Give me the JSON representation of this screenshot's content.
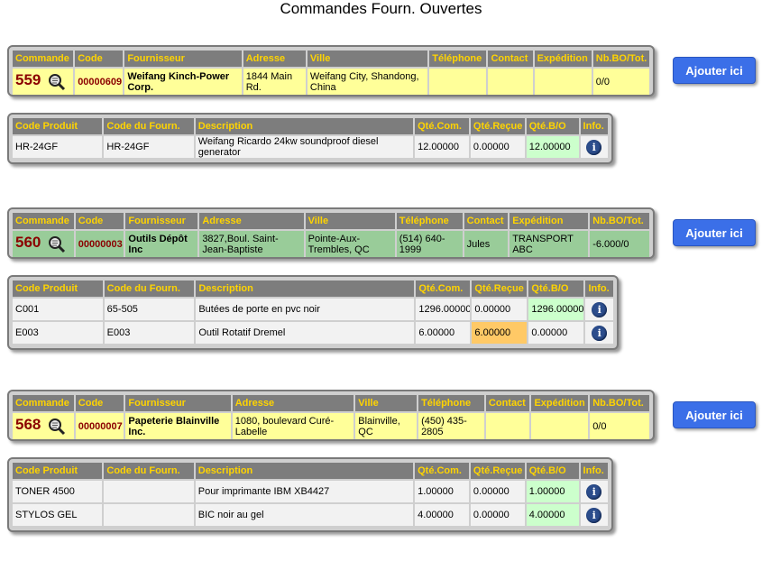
{
  "page_title": "Commandes Fourn. Ouvertes",
  "order_headers": [
    "Commande",
    "Code",
    "Fournisseur",
    "Adresse",
    "Ville",
    "Téléphone",
    "Contact",
    "Expédition",
    "Nb.BO/Tot."
  ],
  "item_headers": [
    "Code Produit",
    "Code du Fourn.",
    "Description",
    "Qté.Com.",
    "Qté.Reçue",
    "Qté.B/O",
    "Info."
  ],
  "add_button_label": "Ajouter ici",
  "info_icon_glyph": "i",
  "colors": {
    "header_bg": "#7d7d7d",
    "header_text": "#ffd400",
    "order_yellow": "#ffff99",
    "order_green": "#99cc99",
    "bo_green": "#ccffcc",
    "received_orange": "#ffc966",
    "button_blue": "#3b6fe8"
  },
  "orders": [
    {
      "number": "559",
      "code": "00000609",
      "supplier": "Weifang Kinch-Power Corp.",
      "address": "1844 Main Rd.",
      "city": "Weifang City, Shandong, China",
      "phone": "",
      "contact": "",
      "shipping": "",
      "bo_total": "0/0",
      "row_color": "yellow",
      "items": [
        {
          "product_code": "HR-24GF",
          "supplier_code": "HR-24GF",
          "description": "Weifang Ricardo 24kw soundproof diesel generator",
          "qty_ordered": "12.00000",
          "qty_received": "0.00000",
          "qty_bo": "12.00000"
        }
      ]
    },
    {
      "number": "560",
      "code": "00000003",
      "supplier": "Outils Dépôt Inc",
      "address": "3827,Boul. Saint-Jean-Baptiste",
      "city": "Pointe-Aux-Trembles, QC",
      "phone": "(514) 640-1999",
      "contact": "Jules",
      "shipping": "TRANSPORT ABC",
      "bo_total": "-6.000/0",
      "row_color": "green",
      "items": [
        {
          "product_code": "C001",
          "supplier_code": "65-505",
          "description": "Butées de porte en pvc noir",
          "qty_ordered": "1296.00000",
          "qty_received": "0.00000",
          "qty_bo": "1296.00000"
        },
        {
          "product_code": "E003",
          "supplier_code": "E003",
          "description": "Outil Rotatif Dremel",
          "qty_ordered": "6.00000",
          "qty_received": "6.00000",
          "qty_bo": "0.00000"
        }
      ]
    },
    {
      "number": "568",
      "code": "00000007",
      "supplier": "Papeterie Blainville Inc.",
      "address": "1080, boulevard Curé-Labelle",
      "city": "Blainville, QC",
      "phone": "(450) 435-2805",
      "contact": "",
      "shipping": "",
      "bo_total": "0/0",
      "row_color": "yellow",
      "items": [
        {
          "product_code": "TONER 4500",
          "supplier_code": "",
          "description": "Pour imprimante IBM XB4427",
          "qty_ordered": "1.00000",
          "qty_received": "0.00000",
          "qty_bo": "1.00000"
        },
        {
          "product_code": "STYLOS GEL",
          "supplier_code": "",
          "description": "BIC noir au gel",
          "qty_ordered": "4.00000",
          "qty_received": "0.00000",
          "qty_bo": "4.00000"
        }
      ]
    }
  ]
}
